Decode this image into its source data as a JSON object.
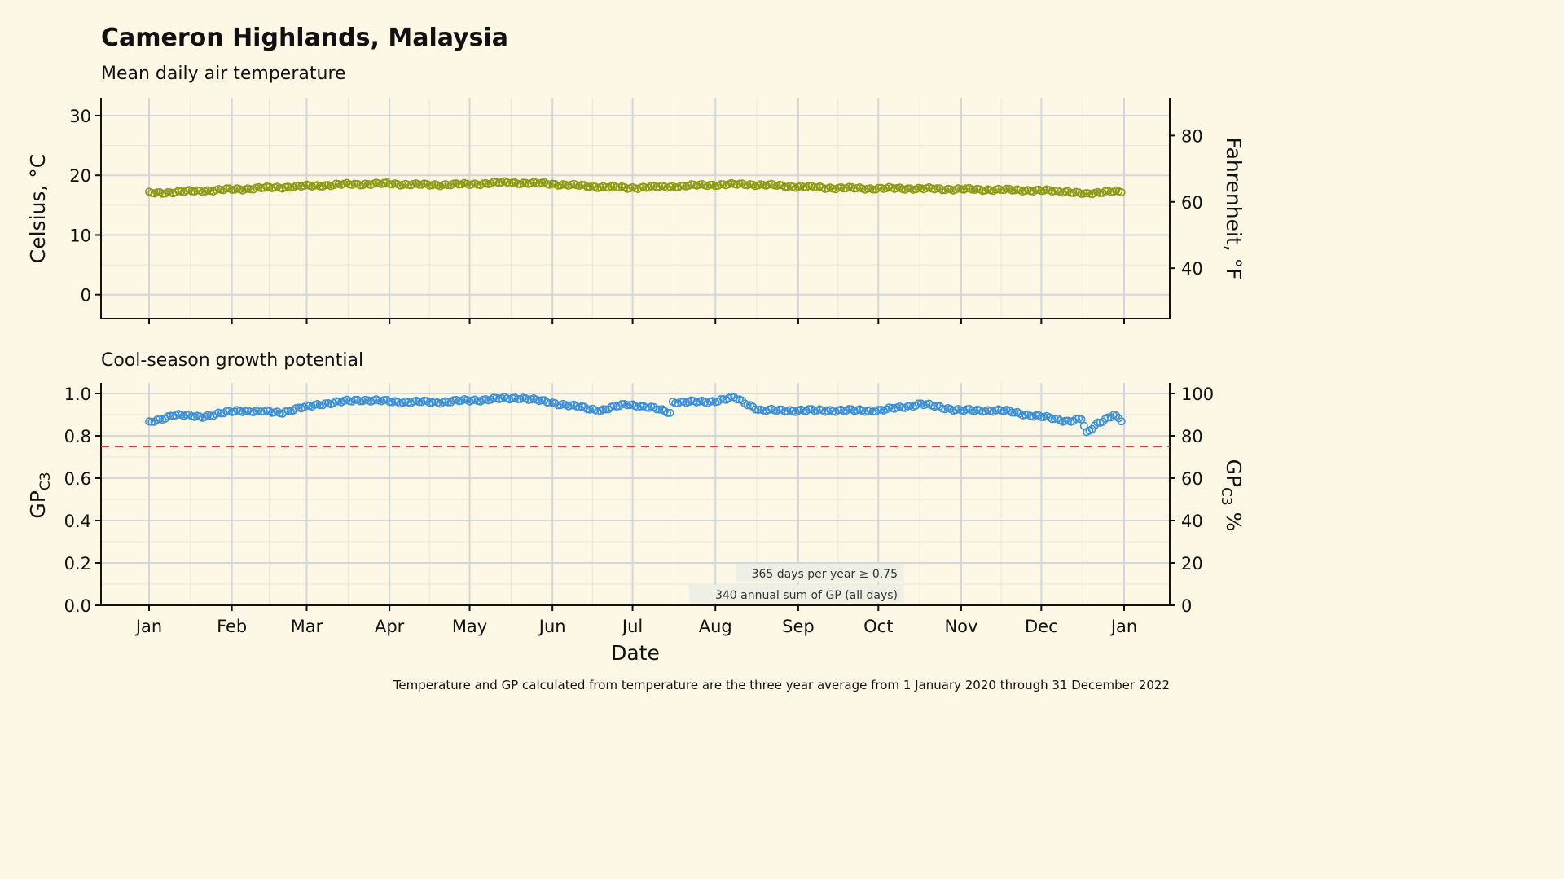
{
  "header": {
    "title": "Cameron Highlands, Malaysia",
    "subtitle_top": "Mean daily air temperature",
    "subtitle_bottom": "Cool-season growth potential"
  },
  "footnote": "Temperature and GP calculated from temperature are the three year average from 1 January 2020 through 31 December 2022",
  "colors": {
    "background": "#fdf7e6",
    "temperature": "#8b9a14",
    "gp": "#3a8fd6",
    "threshold": "#e0403a",
    "grid_major": "#d4d6d8",
    "grid_minor": "#e8e6dc"
  },
  "chart_data": [
    {
      "type": "scatter",
      "subtitle": "Mean daily air temperature",
      "xlabel": "",
      "ylabel": "Celsius, °C",
      "ylabel_right": "Fahrenheit, °F",
      "ylim": [
        -4,
        33
      ],
      "yticks": [
        0,
        10,
        20,
        30
      ],
      "yticks_right": [
        40,
        60,
        80
      ],
      "x_month_ticks": [
        "Jan",
        "Feb",
        "Mar",
        "Apr",
        "May",
        "Jun",
        "Jul",
        "Aug",
        "Sep",
        "Oct",
        "Nov",
        "Dec",
        "Jan"
      ],
      "grid": true,
      "series": [
        {
          "day_start": 1,
          "day_step": 1,
          "anchors_day": [
            1,
            15,
            30,
            45,
            60,
            75,
            90,
            105,
            120,
            135,
            150,
            165,
            180,
            195,
            210,
            225,
            240,
            255,
            270,
            285,
            300,
            315,
            330,
            345,
            352,
            360,
            365
          ],
          "anchors_value": [
            17.0,
            17.3,
            17.6,
            17.9,
            18.2,
            18.5,
            18.6,
            18.4,
            18.5,
            18.8,
            18.6,
            18.2,
            17.9,
            18.1,
            18.4,
            18.5,
            18.2,
            17.9,
            17.8,
            17.8,
            17.7,
            17.6,
            17.5,
            17.3,
            16.8,
            17.4,
            17.2
          ]
        }
      ]
    },
    {
      "type": "scatter",
      "subtitle": "Cool-season growth potential",
      "xlabel": "Date",
      "ylabel": "GPC3",
      "ylabel_right": "GPC3 %",
      "ylim": [
        0,
        1.05
      ],
      "yticks": [
        "0.0",
        "0.2",
        "0.4",
        "0.6",
        "0.8",
        "1.0"
      ],
      "yticks_right": [
        "0",
        "20",
        "40",
        "60",
        "80",
        "100"
      ],
      "x_month_ticks": [
        "Jan",
        "Feb",
        "Mar",
        "Apr",
        "May",
        "Jun",
        "Jul",
        "Aug",
        "Sep",
        "Oct",
        "Nov",
        "Dec",
        "Jan"
      ],
      "threshold": 0.75,
      "grid": true,
      "series": [
        {
          "day_start": 1,
          "day_step": 1,
          "anchors_day": [
            1,
            10,
            20,
            35,
            50,
            65,
            80,
            95,
            110,
            125,
            140,
            155,
            170,
            180,
            190,
            196,
            197,
            210,
            220,
            230,
            245,
            260,
            275,
            290,
            305,
            320,
            335,
            345,
            350,
            352,
            356,
            362,
            365
          ],
          "anchors_value": [
            0.86,
            0.9,
            0.89,
            0.92,
            0.91,
            0.95,
            0.97,
            0.96,
            0.96,
            0.97,
            0.98,
            0.95,
            0.92,
            0.95,
            0.93,
            0.91,
            0.96,
            0.96,
            0.98,
            0.92,
            0.92,
            0.92,
            0.92,
            0.95,
            0.92,
            0.92,
            0.89,
            0.87,
            0.88,
            0.81,
            0.86,
            0.9,
            0.87
          ]
        }
      ],
      "annotations": [
        "365 days per year ≥ 0.75",
        "340 annual sum of GP (all days)"
      ]
    }
  ]
}
